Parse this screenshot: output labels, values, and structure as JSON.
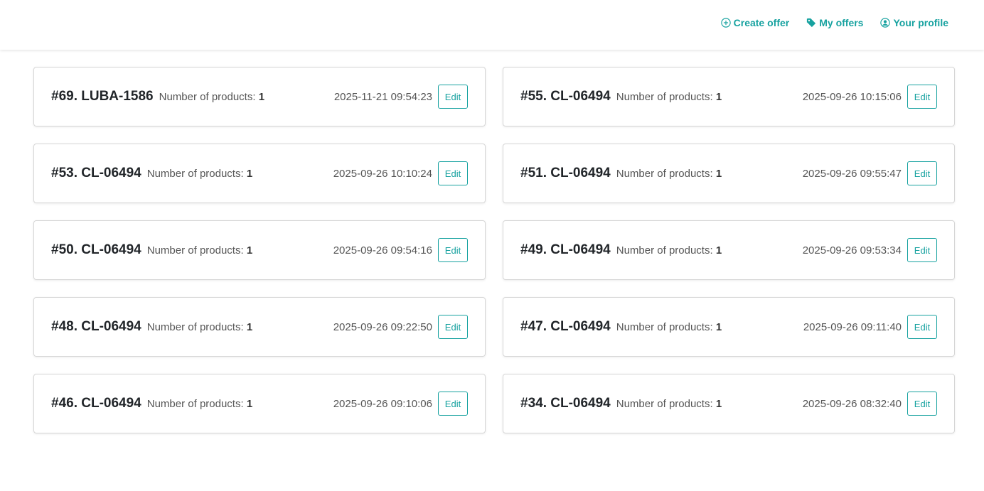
{
  "nav": {
    "create_offer": "Create offer",
    "my_offers": "My offers",
    "your_profile": "Your profile"
  },
  "accent": "#17a2a0",
  "offers": [
    {
      "title": "#69. LUBA-1586",
      "products_label": "Number of products:",
      "products": "1",
      "date": "2025-11-21 09:54:23",
      "edit": "Edit"
    },
    {
      "title": "#55. CL-06494",
      "products_label": "Number of products:",
      "products": "1",
      "date": "2025-09-26 10:15:06",
      "edit": "Edit"
    },
    {
      "title": "#53. CL-06494",
      "products_label": "Number of products:",
      "products": "1",
      "date": "2025-09-26 10:10:24",
      "edit": "Edit"
    },
    {
      "title": "#51. CL-06494",
      "products_label": "Number of products:",
      "products": "1",
      "date": "2025-09-26 09:55:47",
      "edit": "Edit"
    },
    {
      "title": "#50. CL-06494",
      "products_label": "Number of products:",
      "products": "1",
      "date": "2025-09-26 09:54:16",
      "edit": "Edit"
    },
    {
      "title": "#49. CL-06494",
      "products_label": "Number of products:",
      "products": "1",
      "date": "2025-09-26 09:53:34",
      "edit": "Edit"
    },
    {
      "title": "#48. CL-06494",
      "products_label": "Number of products:",
      "products": "1",
      "date": "2025-09-26 09:22:50",
      "edit": "Edit"
    },
    {
      "title": "#47. CL-06494",
      "products_label": "Number of products:",
      "products": "1",
      "date": "2025-09-26 09:11:40",
      "edit": "Edit"
    },
    {
      "title": "#46. CL-06494",
      "products_label": "Number of products:",
      "products": "1",
      "date": "2025-09-26 09:10:06",
      "edit": "Edit"
    },
    {
      "title": "#34. CL-06494",
      "products_label": "Number of products:",
      "products": "1",
      "date": "2025-09-26 08:32:40",
      "edit": "Edit"
    }
  ]
}
